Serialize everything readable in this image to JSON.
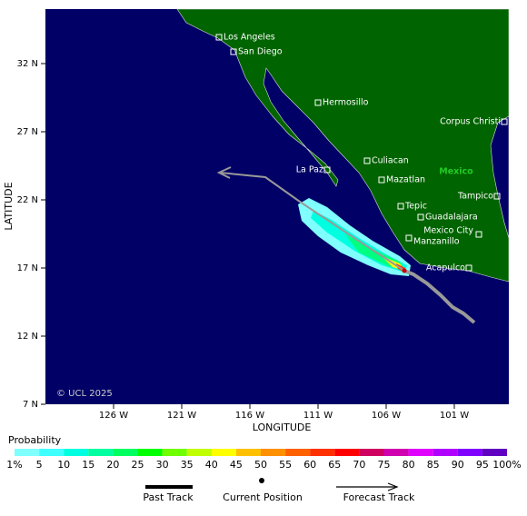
{
  "map": {
    "credit": "© UCL 2025",
    "x_axis_label": "LONGITUDE",
    "y_axis_label": "LATITUDE",
    "x_ticks": [
      "126 W",
      "121 W",
      "116 W",
      "111 W",
      "106 W",
      "101 W"
    ],
    "y_ticks": [
      "32 N",
      "27 N",
      "22 N",
      "17 N",
      "12 N",
      "7 N"
    ],
    "places": [
      "Los Angeles",
      "San Diego",
      "Hermosillo",
      "Corpus Christi",
      "La Paz",
      "Culiacan",
      "Mexico",
      "Mazatlan",
      "Tampico",
      "Tepic",
      "Guadalajara",
      "Mexico City",
      "Manzanillo",
      "Acapulco"
    ]
  },
  "colorbar": {
    "title": "Probability",
    "labels": [
      "1%",
      "5",
      "10",
      "15",
      "20",
      "25",
      "30",
      "35",
      "40",
      "45",
      "50",
      "55",
      "60",
      "65",
      "70",
      "75",
      "80",
      "85",
      "90",
      "95",
      "100%"
    ]
  },
  "legend": [
    "Past Track",
    "Current Position",
    "Forecast Track"
  ]
}
